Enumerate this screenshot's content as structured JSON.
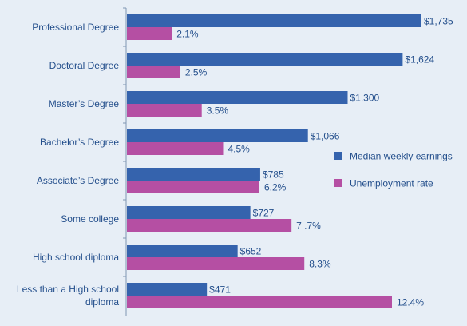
{
  "chart_data": {
    "type": "bar",
    "orientation": "horizontal",
    "categories": [
      "Professional Degree",
      "Doctoral Degree",
      "Master’s Degree",
      "Bachelor’s Degree",
      "Associate’s Degree",
      "Some college",
      "High school diploma",
      "Less than a High school diploma"
    ],
    "series": [
      {
        "name": "Median weekly earnings",
        "color": "#3563ad",
        "values": [
          1735,
          1624,
          1300,
          1066,
          785,
          727,
          652,
          471
        ],
        "labels": [
          "$1,735",
          "$1,624",
          "$1,300",
          "$1,066",
          "$785",
          "$727",
          "$652",
          "$471"
        ]
      },
      {
        "name": "Unemployment rate",
        "color": "#b54fa3",
        "values": [
          2.1,
          2.5,
          3.5,
          4.5,
          6.2,
          7.7,
          8.3,
          12.4
        ],
        "labels": [
          "2.1%",
          "2.5%",
          "3.5%",
          "4.5%",
          "6.2%",
          "7 .7%",
          "8.3%",
          "12.4%"
        ]
      }
    ],
    "legend_position": "right",
    "grid": false
  }
}
